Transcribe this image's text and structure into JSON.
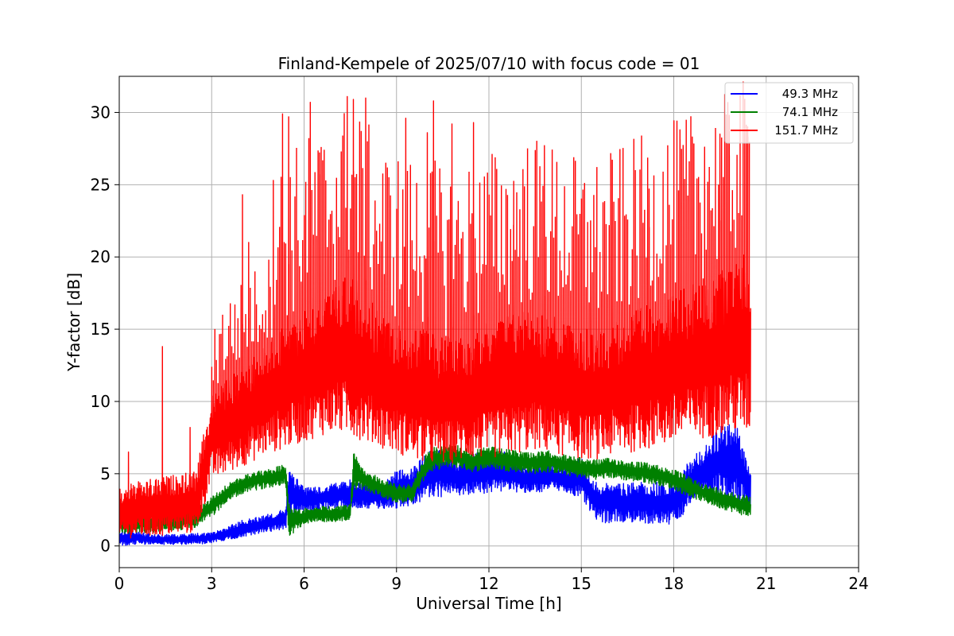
{
  "chart_data": {
    "type": "line",
    "title": "Finland-Kempele of 2025/07/10 with focus code = 01",
    "xlabel": "Universal Time [h]",
    "ylabel": "Y-factor [dB]",
    "xlim": [
      0,
      24
    ],
    "ylim": [
      -1.5,
      32.5
    ],
    "xticks": [
      0,
      3,
      6,
      9,
      12,
      15,
      18,
      21,
      24
    ],
    "xtick_labels": [
      "0",
      "3",
      "6",
      "9",
      "12",
      "15",
      "18",
      "21",
      "24"
    ],
    "yticks": [
      0,
      5,
      10,
      15,
      20,
      25,
      30
    ],
    "ytick_labels": [
      "0",
      "5",
      "10",
      "15",
      "20",
      "25",
      "30"
    ],
    "grid": true,
    "legend_position": "top-right",
    "series": [
      {
        "name": "49.3 MHz",
        "color": "#0000ff",
        "x": [
          0,
          0.5,
          1,
          1.5,
          2,
          2.5,
          3,
          3.5,
          4,
          4.5,
          5,
          5.4,
          5.5,
          6,
          6.5,
          7,
          7.5,
          8,
          8.5,
          9,
          9.5,
          10,
          10.5,
          11,
          11.5,
          12,
          12.5,
          13,
          13.5,
          14,
          14.5,
          15,
          15.5,
          16,
          16.5,
          17,
          17.5,
          18,
          18.2,
          18.5,
          19,
          19.5,
          20,
          20.5
        ],
        "y": [
          0.3,
          0.5,
          0.4,
          0.3,
          0.3,
          0.3,
          0.5,
          0.8,
          1.1,
          1.3,
          1.6,
          1.9,
          2.8,
          3.0,
          3.1,
          3.2,
          3.3,
          3.2,
          3.1,
          3.0,
          3.2,
          3.6,
          3.9,
          4.0,
          4.1,
          4.2,
          4.3,
          4.2,
          4.1,
          4.3,
          4.0,
          3.8,
          2.3,
          2.1,
          2.0,
          2.1,
          2.0,
          2.2,
          2.3,
          3.2,
          3.8,
          3.9,
          3.4,
          3.0
        ],
        "y_low": [
          0.0,
          0.1,
          0.1,
          0.1,
          0.1,
          0.1,
          0.2,
          0.4,
          0.6,
          0.8,
          1.0,
          1.2,
          1.8,
          2.2,
          2.4,
          2.6,
          2.6,
          2.6,
          2.6,
          2.6,
          2.8,
          3.2,
          3.4,
          3.5,
          3.5,
          3.6,
          3.8,
          3.7,
          3.7,
          3.8,
          3.6,
          3.3,
          1.6,
          1.6,
          1.6,
          1.6,
          1.5,
          1.5,
          1.8,
          2.8,
          3.2,
          3.4,
          3.0,
          2.6
        ],
        "y_high": [
          1.0,
          1.1,
          0.8,
          0.8,
          0.8,
          0.9,
          0.9,
          1.3,
          1.8,
          2.0,
          2.3,
          2.6,
          5.5,
          4.0,
          4.2,
          4.4,
          4.6,
          4.3,
          4.3,
          5.2,
          5.4,
          6.5,
          7.0,
          5.8,
          6.4,
          6.5,
          6.6,
          5.7,
          5.6,
          6.0,
          5.4,
          6.2,
          4.4,
          4.6,
          4.3,
          4.5,
          4.4,
          4.6,
          4.7,
          6.0,
          7.0,
          8.3,
          8.6,
          5.5
        ]
      },
      {
        "name": "74.1 MHz",
        "color": "#008000",
        "x": [
          0,
          0.5,
          1,
          1.5,
          2,
          2.5,
          3,
          3.5,
          4,
          4.5,
          5,
          5.4,
          5.5,
          5.7,
          6,
          6.5,
          7,
          7.5,
          7.6,
          8,
          8.5,
          9,
          9.5,
          10,
          10.5,
          11,
          11.5,
          12,
          12.5,
          13,
          13.5,
          14,
          14.5,
          15,
          15.5,
          16,
          16.5,
          17,
          17.5,
          18,
          18.5,
          19,
          19.5,
          20,
          20.5
        ],
        "y": [
          1.5,
          1.6,
          1.6,
          1.7,
          1.8,
          2.0,
          2.6,
          3.6,
          4.2,
          4.5,
          4.7,
          4.9,
          2.0,
          1.6,
          2.0,
          2.2,
          2.1,
          2.3,
          4.3,
          4.5,
          4.0,
          3.6,
          3.6,
          5.8,
          6.3,
          6.2,
          5.8,
          6.1,
          5.9,
          5.8,
          5.7,
          5.8,
          5.6,
          5.4,
          5.3,
          5.4,
          5.2,
          5.1,
          4.9,
          4.6,
          4.1,
          3.6,
          3.3,
          3.0,
          2.7
        ],
        "y_low": [
          0.8,
          0.9,
          0.9,
          1.0,
          1.1,
          1.3,
          2.0,
          3.0,
          3.6,
          3.9,
          4.1,
          4.3,
          0.5,
          1.0,
          1.5,
          1.7,
          1.6,
          1.8,
          3.8,
          3.8,
          3.4,
          3.0,
          3.0,
          5.0,
          5.4,
          5.4,
          5.1,
          5.4,
          5.2,
          5.1,
          5.0,
          5.1,
          4.9,
          4.7,
          4.6,
          4.7,
          4.5,
          4.4,
          4.2,
          3.9,
          3.4,
          3.0,
          2.6,
          2.3,
          1.9
        ],
        "y_high": [
          2.2,
          2.3,
          2.3,
          2.4,
          2.5,
          2.7,
          3.4,
          4.3,
          4.9,
          5.2,
          5.4,
          5.7,
          3.2,
          2.6,
          2.6,
          2.8,
          2.7,
          2.9,
          6.6,
          5.2,
          4.7,
          4.3,
          4.3,
          6.6,
          7.1,
          7.0,
          6.6,
          6.9,
          6.7,
          6.6,
          6.5,
          6.6,
          6.3,
          6.1,
          6.0,
          6.1,
          5.9,
          5.8,
          5.6,
          5.3,
          4.8,
          4.3,
          4.0,
          3.7,
          3.4
        ]
      },
      {
        "name": "151.7 MHz",
        "color": "#ff0000",
        "x": [
          0,
          0.5,
          1,
          1.5,
          2,
          2.5,
          3,
          3.5,
          4,
          4.5,
          5,
          5.5,
          6,
          6.5,
          7,
          7.5,
          8,
          8.5,
          9,
          9.5,
          10,
          10.5,
          11,
          11.5,
          12,
          12.5,
          13,
          13.5,
          14,
          14.5,
          15,
          15.5,
          16,
          16.5,
          17,
          17.5,
          18,
          18.5,
          19,
          19.5,
          20,
          20.5
        ],
        "y": [
          2.0,
          2.2,
          2.3,
          2.4,
          2.5,
          2.6,
          7.0,
          8.0,
          8.6,
          9.2,
          9.8,
          10.4,
          10.8,
          11.2,
          11.6,
          11.8,
          11.4,
          11.0,
          10.6,
          10.4,
          10.2,
          10.0,
          10.0,
          10.2,
          10.4,
          10.8,
          11.0,
          11.2,
          11.0,
          10.8,
          10.6,
          10.6,
          10.8,
          11.0,
          11.2,
          11.4,
          11.6,
          11.8,
          12.0,
          12.2,
          12.6,
          12.0
        ],
        "y_low": [
          0.4,
          0.6,
          0.6,
          0.7,
          0.8,
          0.9,
          4.5,
          5.0,
          5.5,
          6.0,
          6.5,
          6.8,
          7.2,
          7.6,
          7.8,
          7.6,
          7.2,
          6.8,
          6.4,
          6.0,
          5.6,
          5.6,
          5.8,
          6.0,
          6.0,
          6.2,
          6.4,
          6.6,
          6.4,
          6.2,
          6.0,
          6.0,
          6.2,
          6.4,
          6.6,
          6.8,
          7.0,
          7.2,
          7.4,
          7.6,
          7.8,
          7.6
        ],
        "y_high": [
          4.0,
          4.4,
          4.6,
          4.8,
          5.0,
          5.2,
          10.5,
          11.5,
          12.5,
          13.5,
          14.5,
          15.5,
          16.5,
          17.0,
          18.0,
          19.0,
          17.5,
          16.0,
          15.5,
          15.0,
          15.0,
          14.5,
          14.5,
          15.0,
          15.5,
          16.0,
          16.5,
          16.5,
          16.0,
          15.5,
          15.0,
          15.0,
          15.5,
          16.0,
          16.5,
          17.0,
          17.5,
          18.0,
          18.5,
          19.0,
          20.0,
          20.5
        ],
        "peaks": [
          [
            0.3,
            6.5
          ],
          [
            1.4,
            13.8
          ],
          [
            2.3,
            8.2
          ],
          [
            4.0,
            24.3
          ],
          [
            4.2,
            21.0
          ],
          [
            5.0,
            25.3
          ],
          [
            5.3,
            29.9
          ],
          [
            5.5,
            29.7
          ],
          [
            6.2,
            30.7
          ],
          [
            6.5,
            27.2
          ],
          [
            7.4,
            31.1
          ],
          [
            7.6,
            30.9
          ],
          [
            8.0,
            31.0
          ],
          [
            9.3,
            29.6
          ],
          [
            10.0,
            28.6
          ],
          [
            10.2,
            30.8
          ],
          [
            10.8,
            29.2
          ],
          [
            11.5,
            29.3
          ],
          [
            12.8,
            22.2
          ],
          [
            13.8,
            27.7
          ],
          [
            15.3,
            22.5
          ],
          [
            16.0,
            26.7
          ],
          [
            17.2,
            24.7
          ],
          [
            18.2,
            28.8
          ],
          [
            18.6,
            28.3
          ],
          [
            19.0,
            27.6
          ],
          [
            19.5,
            28.5
          ],
          [
            19.8,
            29.8
          ],
          [
            20.4,
            29.0
          ]
        ]
      }
    ]
  }
}
